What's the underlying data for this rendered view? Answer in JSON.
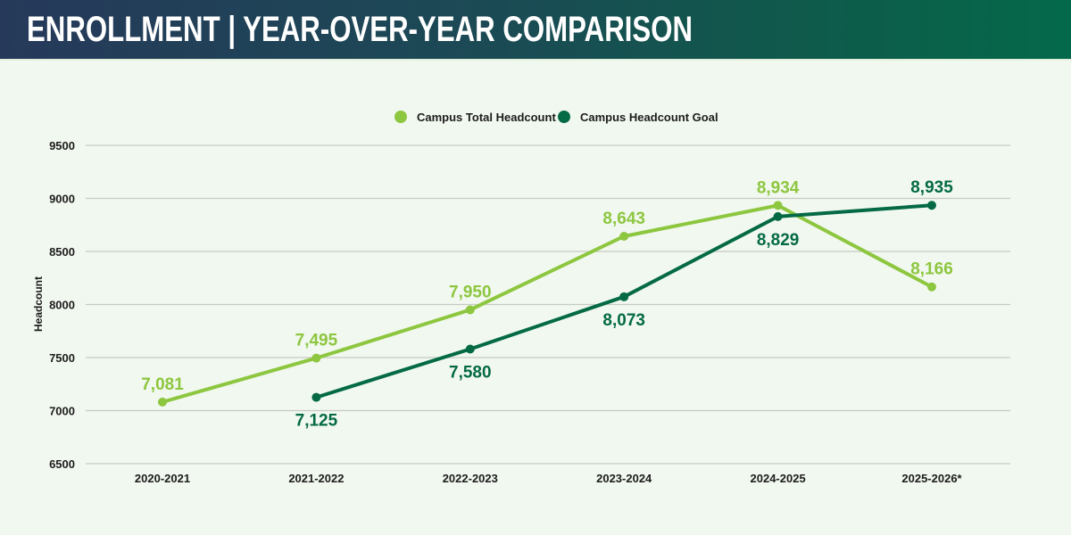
{
  "header": {
    "title": "ENROLLMENT | YEAR-OVER-YEAR COMPARISON"
  },
  "colors": {
    "total": "#8dc63f",
    "goal": "#046a45",
    "grid": "#c5cbc3",
    "background": "#f1f8ef"
  },
  "chart_data": {
    "type": "line",
    "title": "ENROLLMENT | YEAR-OVER-YEAR COMPARISON",
    "xlabel": "",
    "ylabel": "Headcount",
    "categories": [
      "2020-2021",
      "2021-2022",
      "2022-2023",
      "2023-2024",
      "2024-2025",
      "2025-2026*"
    ],
    "ylim": [
      6500,
      9500
    ],
    "yticks": [
      6500,
      7000,
      7500,
      8000,
      8500,
      9000,
      9500
    ],
    "ytick_labels": [
      "6500",
      "7000",
      "7500",
      "8000",
      "8500",
      "9000",
      "9500"
    ],
    "grid": true,
    "legend_position": "top-center",
    "series": [
      {
        "name": "Campus Total Headcount",
        "color": "#8dc63f",
        "values": [
          7081,
          7495,
          7950,
          8643,
          8934,
          8166
        ],
        "labels": [
          "7,081",
          "7,495",
          "7,950",
          "8,643",
          "8,934",
          "8,166"
        ],
        "label_position": [
          "above",
          "above",
          "above",
          "above",
          "above",
          "above"
        ]
      },
      {
        "name": "Campus Headcount Goal",
        "color": "#046a45",
        "values": [
          null,
          7125,
          7580,
          8073,
          8829,
          8935
        ],
        "labels": [
          null,
          "7,125",
          "7,580",
          "8,073",
          "8,829",
          "8,935"
        ],
        "label_position": [
          null,
          "below",
          "below",
          "below",
          "below",
          "above"
        ]
      }
    ]
  }
}
